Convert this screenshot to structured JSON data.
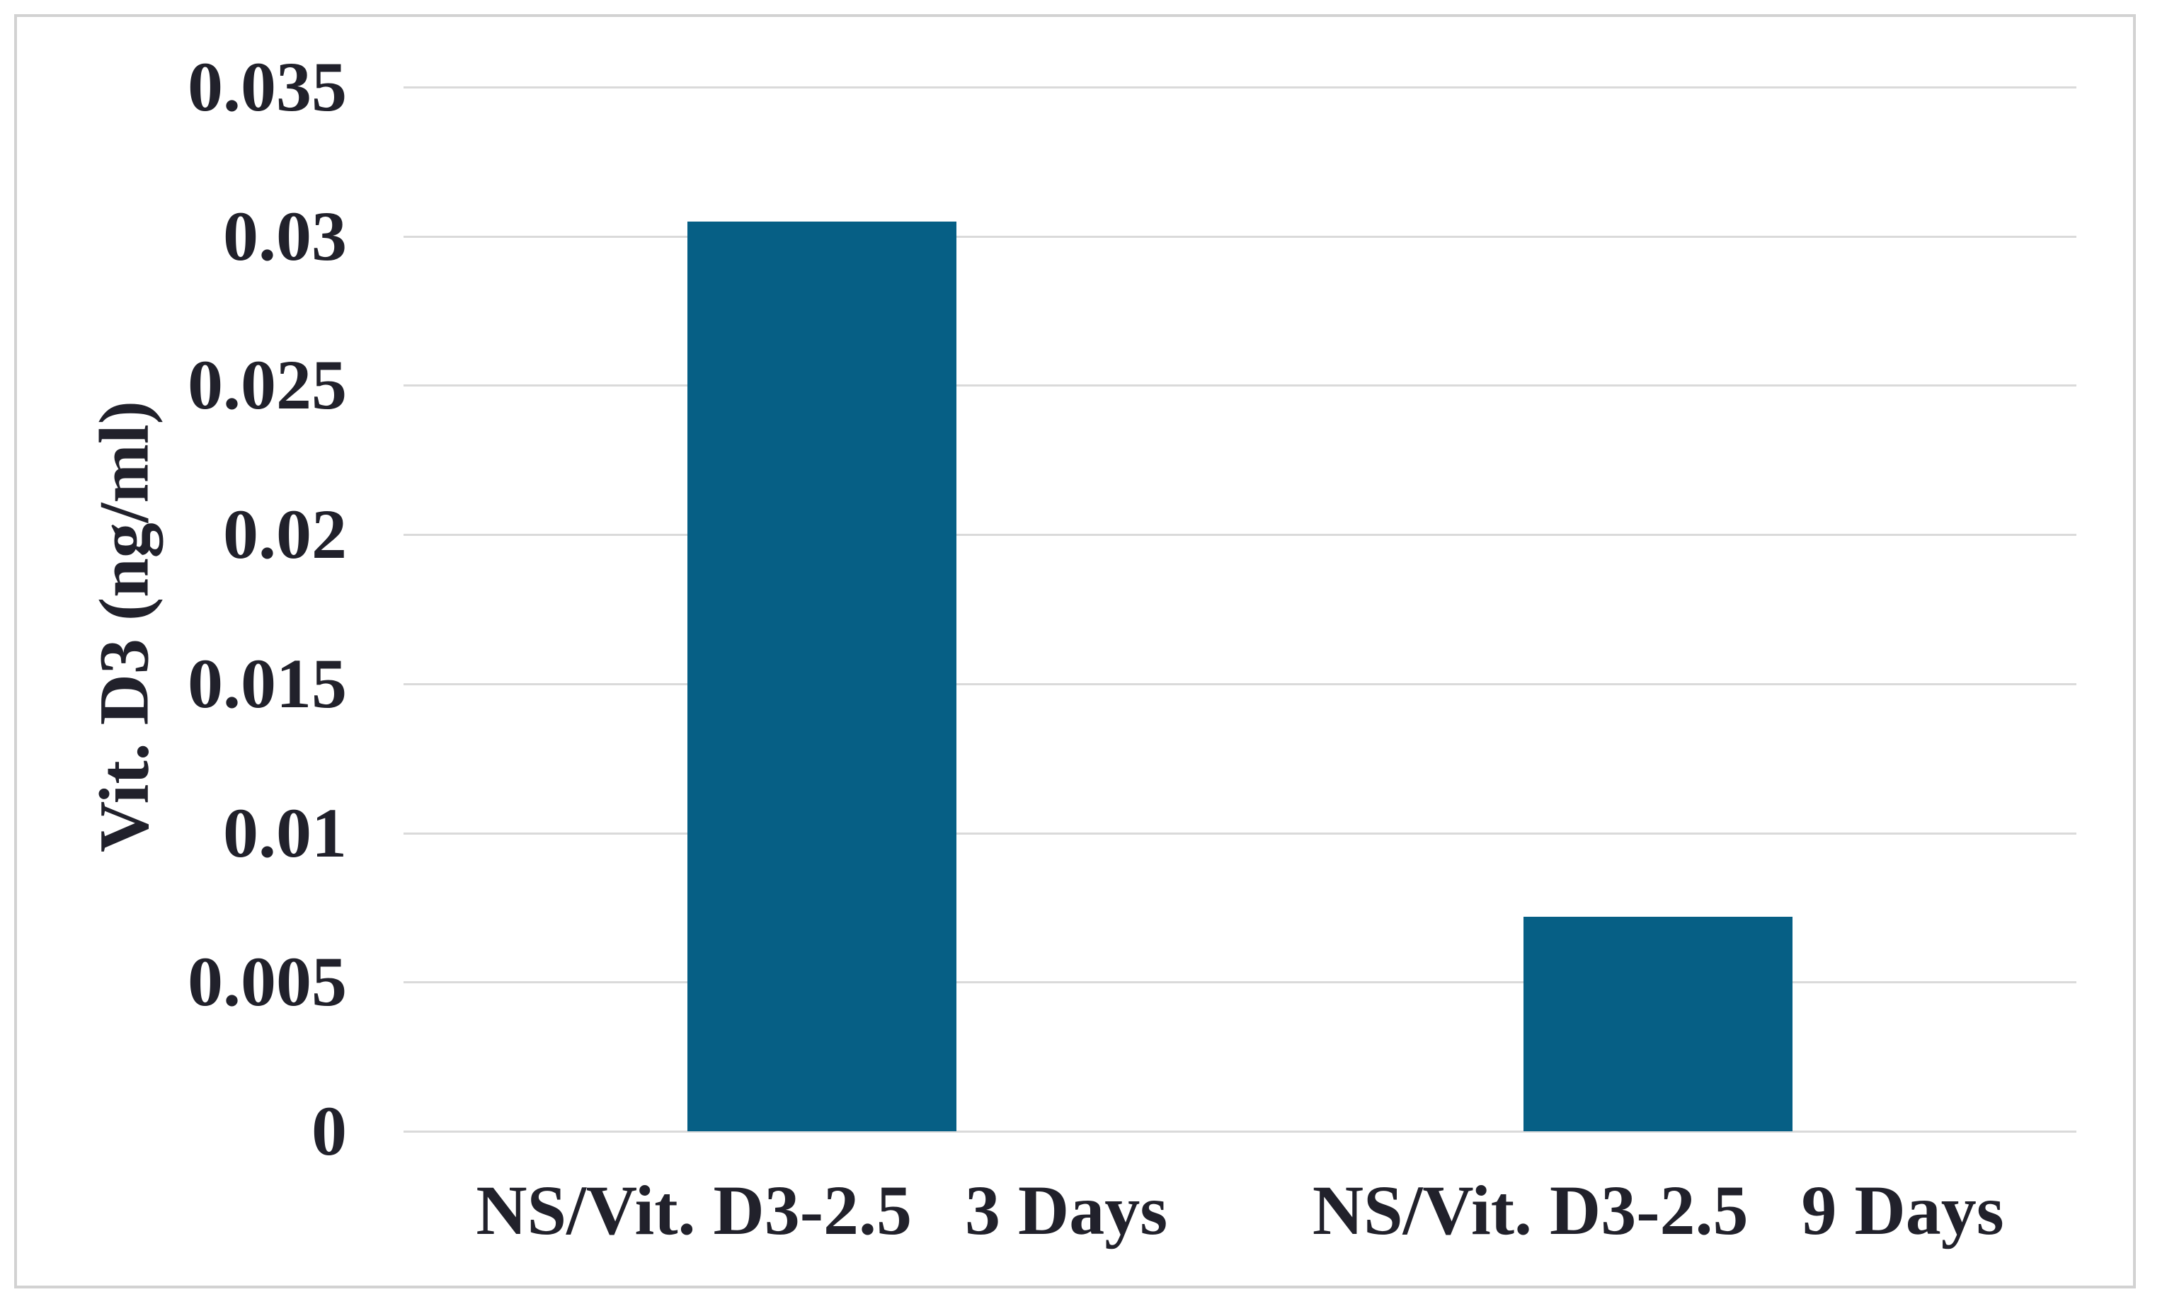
{
  "chart_data": {
    "type": "bar",
    "title": "",
    "ylabel": "Vit. D3 (ng/ml)",
    "xlabel": "",
    "categories": [
      "NS/Vit. D3-2.5   3 Days",
      "NS/Vit. D3-2.5   9 Days"
    ],
    "values": [
      0.0305,
      0.0072
    ],
    "ylim": [
      0,
      0.035
    ],
    "ytick_step": 0.005,
    "ytick_labels": [
      "0",
      "0.005",
      "0.01",
      "0.015",
      "0.02",
      "0.025",
      "0.03",
      "0.035"
    ],
    "grid": true,
    "legend_position": "none",
    "bar_color": "#065f85",
    "gridline_color": "#dadada",
    "frame_border_color": "#d2d2d2",
    "text_color": "#21212b",
    "background_color": "#ffffff"
  }
}
